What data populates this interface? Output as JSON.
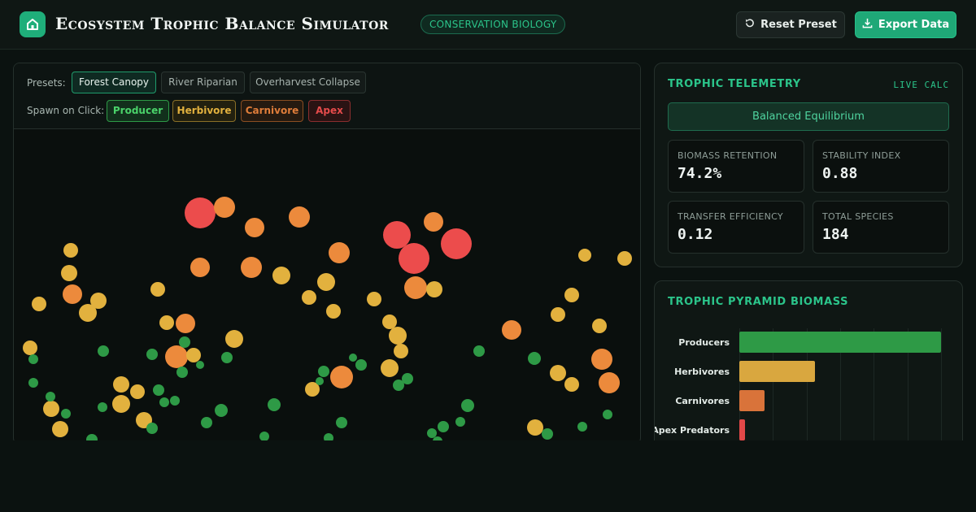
{
  "header": {
    "title": "Ecosystem Trophic Balance Simulator",
    "tag": "CONSERVATION BIOLOGY",
    "reset_label": "Reset Preset",
    "export_label": "Export Data"
  },
  "controls": {
    "presets_label": "Presets:",
    "presets": [
      "Forest Canopy",
      "River Riparian",
      "Overharvest Collapse"
    ],
    "active_preset": "Forest Canopy",
    "spawn_label": "Spawn on Click:",
    "spawn_options": [
      "Producer",
      "Herbivore",
      "Carnivore",
      "Apex"
    ]
  },
  "colors": {
    "producer": "#2e9a46",
    "herbivore": "#e2b13e",
    "carnivore": "#ec8a3c",
    "apex": "#ec4c4c",
    "accent": "#1fa877"
  },
  "telemetry": {
    "title": "TROPHIC TELEMETRY",
    "live_label": "LIVE CALC",
    "status": "Balanced Equilibrium",
    "metrics": [
      {
        "label": "BIOMASS RETENTION",
        "value": "74.2%"
      },
      {
        "label": "STABILITY INDEX",
        "value": "0.88"
      },
      {
        "label": "TRANSFER EFFICIENCY",
        "value": "0.12"
      },
      {
        "label": "TOTAL SPECIES",
        "value": "184"
      }
    ]
  },
  "pyramid": {
    "title": "TROPHIC PYRAMID BIOMASS"
  },
  "chart_data": {
    "type": "bar",
    "orientation": "horizontal",
    "categories": [
      "Producers",
      "Herbivores",
      "Carnivores",
      "Apex Predators"
    ],
    "values": [
      100,
      37.5,
      12.5,
      3
    ],
    "colors": [
      "#2e9a46",
      "#d9a73f",
      "#d9733a",
      "#e24848"
    ],
    "xlim": [
      0,
      100
    ],
    "grid": true
  }
}
